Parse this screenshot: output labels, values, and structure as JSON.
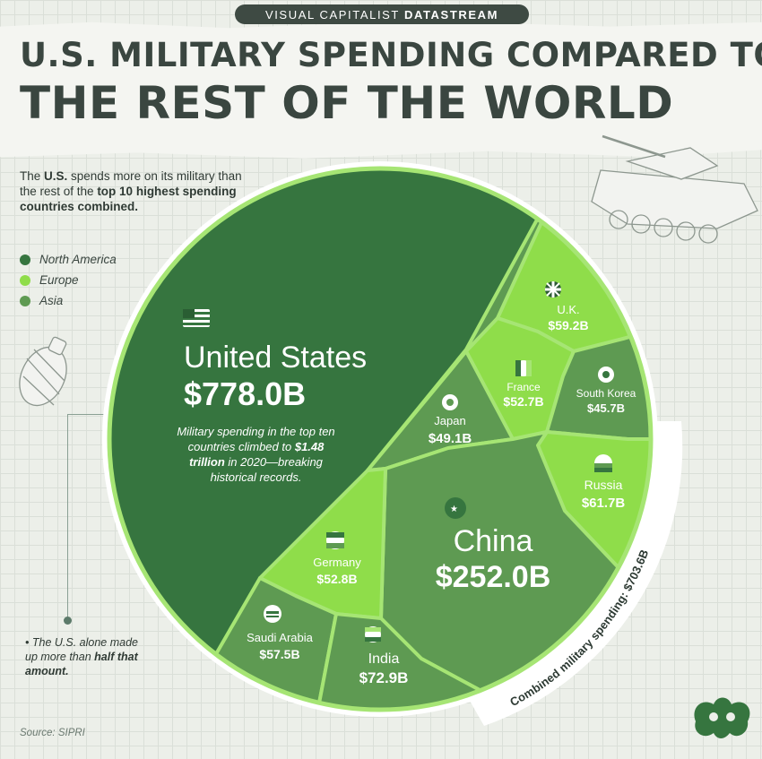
{
  "header": {
    "banner_regular": "VISUAL CAPITALIST",
    "banner_bold": "DATASTREAM",
    "title_line1": "U.S. MILITARY SPENDING COMPARED TO",
    "title_line2": "THE REST OF THE WORLD"
  },
  "intro": {
    "part1": "The ",
    "bold1": "U.S.",
    "part2": " spends more on its military than the rest of the ",
    "bold2": "top 10 highest spending countries combined."
  },
  "legend": [
    {
      "label": "North America",
      "color": "#36753f"
    },
    {
      "label": "Europe",
      "color": "#8fdd4a"
    },
    {
      "label": "Asia",
      "color": "#5e9a52"
    }
  ],
  "annotation": {
    "part1": "Military spending in the top ten countries climbed to ",
    "bold": "$1.48 trillion",
    "part2": " in 2020—breaking historical records."
  },
  "note": {
    "part1": "The U.S. alone made up more than ",
    "bold": "half that amount."
  },
  "arc_label": "Combined military spending: $703.6B",
  "source": "Source: SIPRI",
  "colors": {
    "north_america": "#36753f",
    "europe": "#8fdd4a",
    "asia": "#5e9a52",
    "border": "#a6e574",
    "background": "#ecefe9"
  },
  "chart_data": {
    "type": "voronoi treemap",
    "unit": "USD billions",
    "region_labels": [
      "North America",
      "Europe",
      "Asia"
    ],
    "countries": [
      {
        "name": "United States",
        "value_label": "$778.0B",
        "value": 778.0,
        "region": "North America",
        "flag": "us-flag-icon"
      },
      {
        "name": "China",
        "value_label": "$252.0B",
        "value": 252.0,
        "region": "Asia",
        "flag": "china-flag-icon"
      },
      {
        "name": "India",
        "value_label": "$72.9B",
        "value": 72.9,
        "region": "Asia",
        "flag": "india-flag-icon"
      },
      {
        "name": "Russia",
        "value_label": "$61.7B",
        "value": 61.7,
        "region": "Europe",
        "flag": "russia-flag-icon"
      },
      {
        "name": "U.K.",
        "value_label": "$59.2B",
        "value": 59.2,
        "region": "Europe",
        "flag": "uk-flag-icon"
      },
      {
        "name": "Saudi Arabia",
        "value_label": "$57.5B",
        "value": 57.5,
        "region": "Asia",
        "flag": "saudi-flag-icon"
      },
      {
        "name": "Germany",
        "value_label": "$52.8B",
        "value": 52.8,
        "region": "Europe",
        "flag": "germany-flag-icon"
      },
      {
        "name": "France",
        "value_label": "$52.7B",
        "value": 52.7,
        "region": "Europe",
        "flag": "france-flag-icon"
      },
      {
        "name": "Japan",
        "value_label": "$49.1B",
        "value": 49.1,
        "region": "Asia",
        "flag": "japan-flag-icon"
      },
      {
        "name": "South Korea",
        "value_label": "$45.7B",
        "value": 45.7,
        "region": "Asia",
        "flag": "south-korea-flag-icon"
      }
    ],
    "rest_of_top10_total_label": "$703.6B"
  }
}
